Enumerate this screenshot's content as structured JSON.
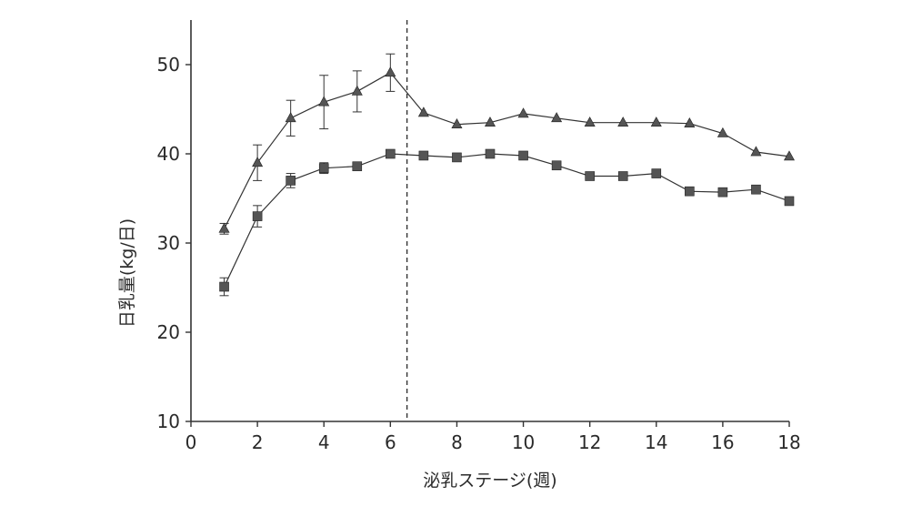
{
  "chart_data": {
    "type": "line",
    "xlabel": "泌乳ステージ(週)",
    "ylabel": "日乳量(kg/日)",
    "xlim": [
      0,
      18
    ],
    "ylim": [
      10,
      55
    ],
    "x_ticks": [
      "0",
      "2",
      "4",
      "6",
      "8",
      "10",
      "12",
      "14",
      "16",
      "18"
    ],
    "y_ticks": [
      "10",
      "20",
      "30",
      "40",
      "50"
    ],
    "x_tick_values": [
      0,
      2,
      4,
      6,
      8,
      10,
      12,
      14,
      16,
      18
    ],
    "y_tick_values": [
      10,
      20,
      30,
      40,
      50
    ],
    "grid": false,
    "reference_line": {
      "x": 6.5,
      "style": "dashed"
    },
    "series": [
      {
        "marker": "triangle",
        "color": "#555555",
        "x": [
          1,
          2,
          3,
          4,
          5,
          6,
          7,
          8,
          9,
          10,
          11,
          12,
          13,
          14,
          15,
          16,
          17,
          18
        ],
        "values": [
          31.6,
          39.0,
          44.0,
          45.8,
          47.0,
          49.1,
          44.6,
          43.3,
          43.5,
          44.5,
          44.0,
          43.5,
          43.5,
          43.5,
          43.4,
          42.3,
          40.2,
          39.7
        ],
        "error": [
          0.6,
          2.0,
          2.0,
          3.0,
          2.3,
          2.1,
          null,
          null,
          null,
          null,
          null,
          null,
          null,
          null,
          null,
          null,
          null,
          null
        ]
      },
      {
        "marker": "square",
        "color": "#555555",
        "x": [
          1,
          2,
          3,
          4,
          5,
          6,
          7,
          8,
          9,
          10,
          11,
          12,
          13,
          14,
          15,
          16,
          17,
          18
        ],
        "values": [
          25.1,
          33.0,
          37.0,
          38.4,
          38.6,
          40.0,
          39.8,
          39.6,
          40.0,
          39.8,
          38.7,
          37.5,
          37.5,
          37.8,
          35.8,
          35.7,
          36.0,
          34.7
        ],
        "error": [
          1.0,
          1.2,
          0.8,
          0.6,
          null,
          null,
          null,
          null,
          null,
          null,
          null,
          null,
          null,
          null,
          null,
          null,
          null,
          null
        ]
      }
    ]
  }
}
